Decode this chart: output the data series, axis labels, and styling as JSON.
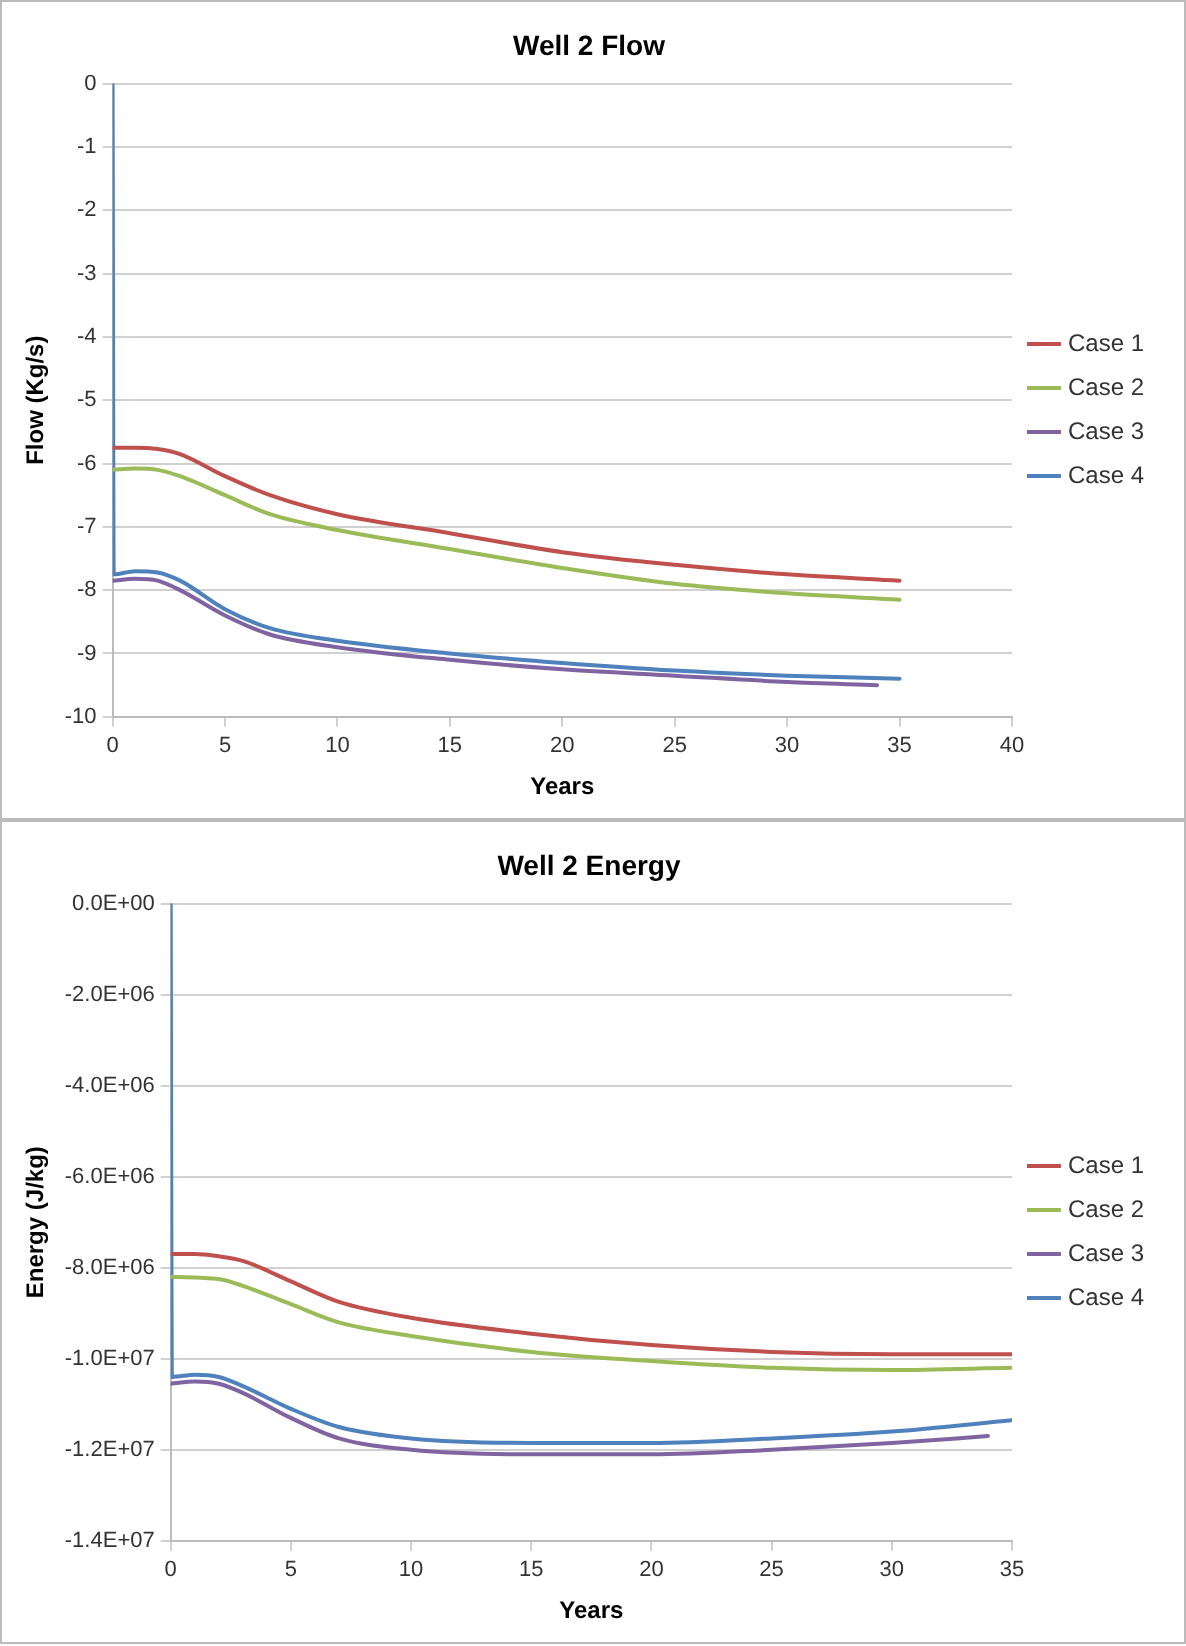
{
  "chart_data": [
    {
      "type": "line",
      "title": "Well 2 Flow",
      "xlabel": "Years",
      "ylabel": "Flow (Kg/s)",
      "xlim": [
        0,
        40
      ],
      "xticks": [
        0,
        5,
        10,
        15,
        20,
        25,
        30,
        35,
        40
      ],
      "ylim": [
        -10,
        0
      ],
      "yticks": [
        -10,
        -9,
        -8,
        -7,
        -6,
        -5,
        -4,
        -3,
        -2,
        -1,
        0
      ],
      "grid": "y",
      "legend": "right",
      "marker": "none",
      "line_style": "solid",
      "series": [
        {
          "name": "Case 1",
          "color": "#c0504d",
          "x": [
            0,
            1,
            2,
            3,
            5,
            7,
            10,
            15,
            20,
            25,
            30,
            35
          ],
          "values": [
            -5.75,
            -5.75,
            -5.77,
            -5.85,
            -6.2,
            -6.5,
            -6.8,
            -7.1,
            -7.4,
            -7.6,
            -7.75,
            -7.85
          ]
        },
        {
          "name": "Case 2",
          "color": "#9bbb59",
          "x": [
            0,
            1,
            2,
            3,
            5,
            7,
            10,
            15,
            20,
            25,
            30,
            35
          ],
          "values": [
            -6.1,
            -6.08,
            -6.1,
            -6.2,
            -6.5,
            -6.8,
            -7.05,
            -7.35,
            -7.65,
            -7.9,
            -8.05,
            -8.15
          ]
        },
        {
          "name": "Case 3",
          "color": "#8064a2",
          "x": [
            0,
            1,
            2,
            3,
            5,
            7,
            10,
            15,
            20,
            25,
            30,
            34
          ],
          "values": [
            -7.85,
            -7.82,
            -7.85,
            -8.0,
            -8.4,
            -8.7,
            -8.9,
            -9.1,
            -9.25,
            -9.35,
            -9.45,
            -9.5
          ]
        },
        {
          "name": "Case 4",
          "color": "#4f81bd",
          "x": [
            0,
            0.05,
            1,
            2,
            3,
            5,
            7,
            10,
            15,
            20,
            25,
            30,
            35
          ],
          "values": [
            0,
            -7.75,
            -7.7,
            -7.72,
            -7.85,
            -8.3,
            -8.6,
            -8.8,
            -9.0,
            -9.15,
            -9.27,
            -9.35,
            -9.4
          ]
        }
      ]
    },
    {
      "type": "line",
      "title": "Well 2 Energy",
      "xlabel": "Years",
      "ylabel": "Energy (J/kg)",
      "xlim": [
        0,
        35
      ],
      "xticks": [
        0,
        5,
        10,
        15,
        20,
        25,
        30,
        35
      ],
      "ylim": [
        -14000000,
        0
      ],
      "yticks": [
        {
          "value": -14000000,
          "label": "-1.4E+07"
        },
        {
          "value": -12000000,
          "label": "-1.2E+07"
        },
        {
          "value": -10000000,
          "label": "-1.0E+07"
        },
        {
          "value": -8000000,
          "label": "-8.0E+06"
        },
        {
          "value": -6000000,
          "label": "-6.0E+06"
        },
        {
          "value": -4000000,
          "label": "-4.0E+06"
        },
        {
          "value": -2000000,
          "label": "-2.0E+06"
        },
        {
          "value": 0,
          "label": "0.0E+00"
        }
      ],
      "grid": "y",
      "legend": "right",
      "marker": "none",
      "line_style": "solid",
      "series": [
        {
          "name": "Case 1",
          "color": "#c0504d",
          "x": [
            0,
            1,
            2,
            3,
            5,
            7,
            10,
            15,
            20,
            25,
            30,
            35
          ],
          "values": [
            -7700000,
            -7700000,
            -7750000,
            -7850000,
            -8300000,
            -8750000,
            -9100000,
            -9450000,
            -9700000,
            -9850000,
            -9900000,
            -9900000
          ]
        },
        {
          "name": "Case 2",
          "color": "#9bbb59",
          "x": [
            0,
            2,
            3,
            5,
            7,
            10,
            15,
            20,
            25,
            30,
            35
          ],
          "values": [
            -8200000,
            -8250000,
            -8400000,
            -8800000,
            -9200000,
            -9500000,
            -9850000,
            -10050000,
            -10200000,
            -10250000,
            -10200000
          ]
        },
        {
          "name": "Case 3",
          "color": "#8064a2",
          "x": [
            0,
            1,
            2,
            3,
            5,
            7,
            10,
            15,
            20,
            25,
            30,
            34
          ],
          "values": [
            -10550000,
            -10500000,
            -10550000,
            -10750000,
            -11300000,
            -11750000,
            -12000000,
            -12100000,
            -12100000,
            -12000000,
            -11850000,
            -11700000
          ]
        },
        {
          "name": "Case 4",
          "color": "#4f81bd",
          "x": [
            0,
            0.05,
            1,
            2,
            3,
            5,
            7,
            10,
            15,
            20,
            25,
            30,
            35
          ],
          "values": [
            0,
            -10400000,
            -10350000,
            -10400000,
            -10600000,
            -11100000,
            -11500000,
            -11750000,
            -11850000,
            -11850000,
            -11750000,
            -11600000,
            -11350000
          ]
        }
      ]
    }
  ]
}
